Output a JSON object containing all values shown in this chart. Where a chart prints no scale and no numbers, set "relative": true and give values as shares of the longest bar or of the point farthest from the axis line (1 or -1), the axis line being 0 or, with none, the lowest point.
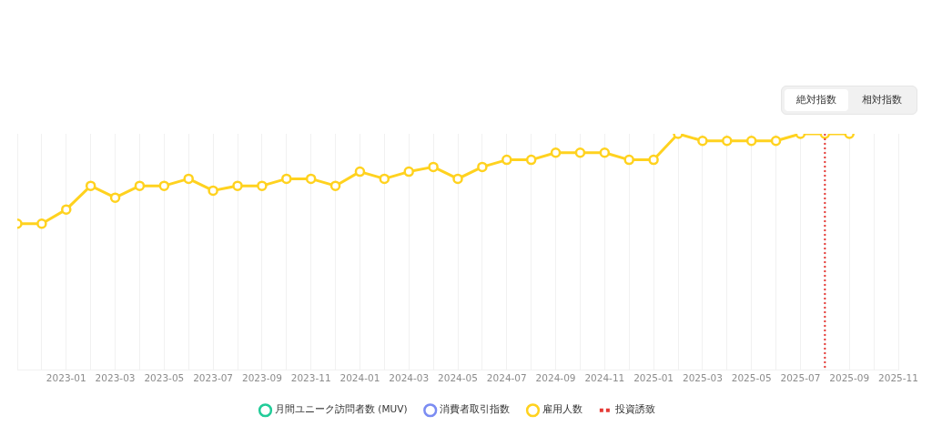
{
  "chart_data": {
    "type": "line",
    "relative": true,
    "x": [
      "2022-11",
      "2022-12",
      "2023-01",
      "2023-02",
      "2023-03",
      "2023-04",
      "2023-05",
      "2023-06",
      "2023-07",
      "2023-08",
      "2023-09",
      "2023-10",
      "2023-11",
      "2023-12",
      "2024-01",
      "2024-02",
      "2024-03",
      "2024-04",
      "2024-05",
      "2024-06",
      "2024-07",
      "2024-08",
      "2024-09",
      "2024-10",
      "2024-11",
      "2024-12",
      "2025-01",
      "2025-02",
      "2025-03",
      "2025-04",
      "2025-05",
      "2025-06",
      "2025-07",
      "2025-08",
      "2025-09"
    ],
    "xlim": [
      "2022-11",
      "2025-11"
    ],
    "xticks": [
      {
        "value": "2022-11",
        "label": null
      },
      {
        "value": "2022-12",
        "label": null
      },
      "2023-01",
      {
        "value": "2023-02",
        "label": null
      },
      "2023-03",
      {
        "value": "2023-04",
        "label": null
      },
      "2023-05",
      {
        "value": "2023-06",
        "label": null
      },
      "2023-07",
      {
        "value": "2023-08",
        "label": null
      },
      "2023-09",
      {
        "value": "2023-10",
        "label": null
      },
      "2023-11",
      {
        "value": "2023-12",
        "label": null
      },
      "2024-01",
      {
        "value": "2024-02",
        "label": null
      },
      "2024-03",
      {
        "value": "2024-04",
        "label": null
      },
      "2024-05",
      {
        "value": "2024-06",
        "label": null
      },
      "2024-07",
      {
        "value": "2024-08",
        "label": null
      },
      "2024-09",
      {
        "value": "2024-10",
        "label": null
      },
      "2024-11",
      {
        "value": "2024-12",
        "label": null
      },
      "2025-01",
      {
        "value": "2025-02",
        "label": null
      },
      "2025-03",
      {
        "value": "2025-04",
        "label": null
      },
      "2025-05",
      {
        "value": "2025-06",
        "label": null
      },
      "2025-07",
      {
        "value": "2025-08",
        "label": null
      },
      "2025-09",
      {
        "value": "2025-10",
        "label": null
      },
      "2025-11"
    ],
    "series": [
      {
        "name": "月間ユニーク訪問者数 (MUV)",
        "color": "#22cc99",
        "values": [
          null,
          null,
          null,
          null,
          null,
          null,
          null,
          null,
          null,
          null,
          null,
          null,
          null,
          null,
          null,
          null,
          null,
          null,
          null,
          null,
          null,
          null,
          null,
          null,
          null,
          null,
          null,
          null,
          null,
          null,
          null,
          null,
          null,
          null,
          null
        ]
      },
      {
        "name": "消費者取引指数",
        "color": "#7b8cf2",
        "values": [
          null,
          null,
          null,
          null,
          null,
          null,
          null,
          null,
          null,
          null,
          null,
          null,
          null,
          null,
          null,
          null,
          null,
          null,
          null,
          null,
          null,
          null,
          null,
          null,
          null,
          null,
          null,
          null,
          null,
          null,
          null,
          null,
          null,
          null,
          null
        ]
      },
      {
        "name": "雇用人数",
        "color": "#ffd21f",
        "values": [
          0.62,
          0.62,
          0.68,
          0.78,
          0.73,
          0.78,
          0.78,
          0.81,
          0.76,
          0.78,
          0.78,
          0.81,
          0.81,
          0.78,
          0.84,
          0.81,
          0.84,
          0.86,
          0.81,
          0.86,
          0.89,
          0.89,
          0.92,
          0.92,
          0.92,
          0.89,
          0.89,
          1,
          0.97,
          0.97,
          0.97,
          0.97,
          1,
          1,
          1
        ]
      }
    ],
    "ref_lines": [
      {
        "axis": "x",
        "value": "2025-08",
        "label": "投資誘致",
        "color": "#e53935",
        "line_style": "dotted"
      }
    ],
    "grid": "x",
    "legend": "bottom",
    "marker": "circle",
    "line_style": "solid",
    "annotations": [
      "絶対指数",
      "相対指数"
    ]
  }
}
